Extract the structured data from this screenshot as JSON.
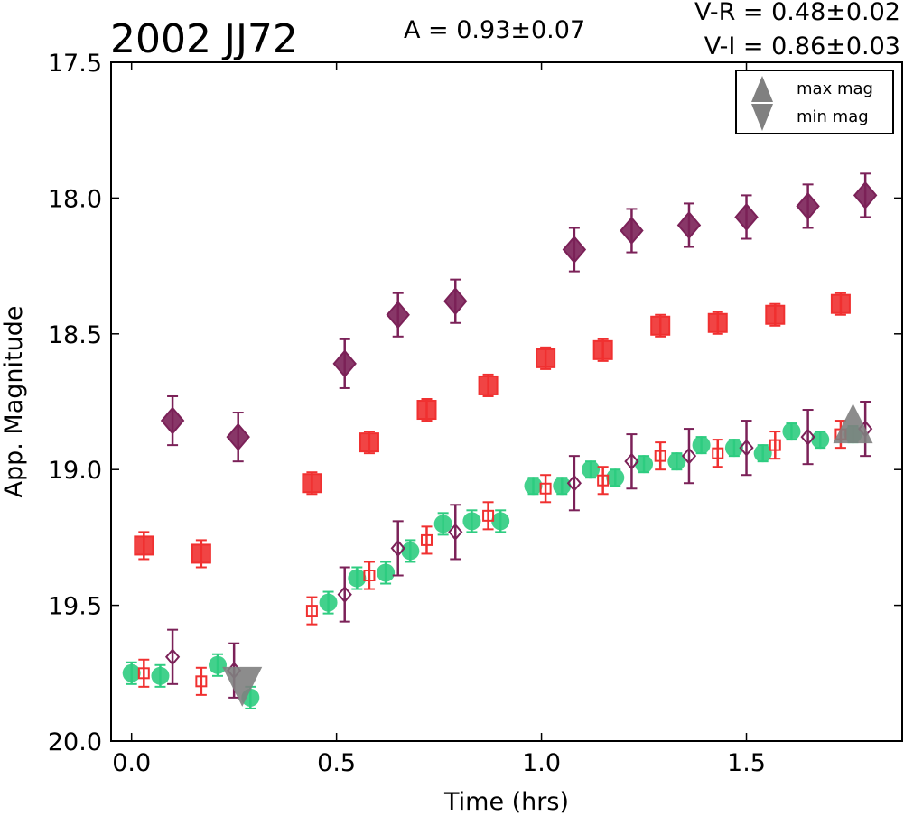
{
  "chart_data": {
    "type": "scatter",
    "title": "2002 JJ72",
    "annotations": {
      "amplitude": "A  = 0.93±0.07",
      "v_r": "V-R = 0.48±0.02",
      "v_i": "V-I  = 0.86±0.03"
    },
    "xlabel": "Time (hrs)",
    "ylabel": "App. Magnitude",
    "xlim": [
      -0.05,
      1.88
    ],
    "ylim": [
      20.0,
      17.5
    ],
    "y_inverted": true,
    "xticks": [
      "0.0",
      "0.5",
      "1.0",
      "1.5"
    ],
    "xtick_values": [
      0.0,
      0.5,
      1.0,
      1.5
    ],
    "yticks": [
      "17.5",
      "18.0",
      "18.5",
      "19.0",
      "19.5",
      "20.0"
    ],
    "ytick_values": [
      17.5,
      18.0,
      18.5,
      19.0,
      19.5,
      20.0
    ],
    "grid": false,
    "legend_position": "top-right",
    "legend": [
      {
        "label": "max mag",
        "marker": "triangle-up",
        "color": "#808080"
      },
      {
        "label": "min mag",
        "marker": "triangle-down",
        "color": "#808080"
      }
    ],
    "markers": {
      "max": {
        "x": 1.76,
        "y": 18.85,
        "color": "#808080"
      },
      "min": {
        "x": 0.27,
        "y": 19.78,
        "color": "#808080"
      }
    },
    "series": [
      {
        "marker": "diamond",
        "color": "#7b2158",
        "filled": true,
        "points": [
          {
            "x": 0.1,
            "y": 18.82,
            "err": 0.09
          },
          {
            "x": 0.26,
            "y": 18.88,
            "err": 0.09
          },
          {
            "x": 0.52,
            "y": 18.61,
            "err": 0.09
          },
          {
            "x": 0.65,
            "y": 18.43,
            "err": 0.08
          },
          {
            "x": 0.79,
            "y": 18.38,
            "err": 0.08
          },
          {
            "x": 1.08,
            "y": 18.19,
            "err": 0.08
          },
          {
            "x": 1.22,
            "y": 18.12,
            "err": 0.08
          },
          {
            "x": 1.36,
            "y": 18.1,
            "err": 0.08
          },
          {
            "x": 1.5,
            "y": 18.07,
            "err": 0.08
          },
          {
            "x": 1.65,
            "y": 18.03,
            "err": 0.08
          },
          {
            "x": 1.79,
            "y": 17.99,
            "err": 0.08
          }
        ]
      },
      {
        "marker": "square",
        "color": "#f03030",
        "filled": true,
        "points": [
          {
            "x": 0.03,
            "y": 19.28,
            "err": 0.05
          },
          {
            "x": 0.17,
            "y": 19.31,
            "err": 0.05
          },
          {
            "x": 0.44,
            "y": 19.05,
            "err": 0.04
          },
          {
            "x": 0.58,
            "y": 18.9,
            "err": 0.04
          },
          {
            "x": 0.72,
            "y": 18.78,
            "err": 0.04
          },
          {
            "x": 0.87,
            "y": 18.69,
            "err": 0.04
          },
          {
            "x": 1.01,
            "y": 18.59,
            "err": 0.04
          },
          {
            "x": 1.15,
            "y": 18.56,
            "err": 0.04
          },
          {
            "x": 1.29,
            "y": 18.47,
            "err": 0.04
          },
          {
            "x": 1.43,
            "y": 18.46,
            "err": 0.04
          },
          {
            "x": 1.57,
            "y": 18.43,
            "err": 0.04
          },
          {
            "x": 1.73,
            "y": 18.39,
            "err": 0.04
          }
        ]
      },
      {
        "marker": "circle",
        "color": "#2ecc80",
        "filled": true,
        "points": [
          {
            "x": 0.0,
            "y": 19.75,
            "err": 0.04
          },
          {
            "x": 0.07,
            "y": 19.76,
            "err": 0.04
          },
          {
            "x": 0.21,
            "y": 19.72,
            "err": 0.04
          },
          {
            "x": 0.29,
            "y": 19.84,
            "err": 0.04
          },
          {
            "x": 0.48,
            "y": 19.49,
            "err": 0.04
          },
          {
            "x": 0.55,
            "y": 19.4,
            "err": 0.04
          },
          {
            "x": 0.62,
            "y": 19.38,
            "err": 0.04
          },
          {
            "x": 0.68,
            "y": 19.3,
            "err": 0.04
          },
          {
            "x": 0.76,
            "y": 19.2,
            "err": 0.04
          },
          {
            "x": 0.83,
            "y": 19.19,
            "err": 0.04
          },
          {
            "x": 0.9,
            "y": 19.19,
            "err": 0.04
          },
          {
            "x": 0.98,
            "y": 19.06,
            "err": 0.03
          },
          {
            "x": 1.05,
            "y": 19.06,
            "err": 0.03
          },
          {
            "x": 1.12,
            "y": 19.0,
            "err": 0.03
          },
          {
            "x": 1.18,
            "y": 19.03,
            "err": 0.03
          },
          {
            "x": 1.25,
            "y": 18.98,
            "err": 0.03
          },
          {
            "x": 1.33,
            "y": 18.97,
            "err": 0.03
          },
          {
            "x": 1.39,
            "y": 18.91,
            "err": 0.03
          },
          {
            "x": 1.47,
            "y": 18.92,
            "err": 0.03
          },
          {
            "x": 1.54,
            "y": 18.94,
            "err": 0.03
          },
          {
            "x": 1.61,
            "y": 18.86,
            "err": 0.03
          },
          {
            "x": 1.68,
            "y": 18.89,
            "err": 0.03
          },
          {
            "x": 1.76,
            "y": 18.87,
            "err": 0.03
          }
        ]
      },
      {
        "marker": "square",
        "color": "#f03030",
        "filled": false,
        "points": [
          {
            "x": 0.03,
            "y": 19.75,
            "err": 0.05
          },
          {
            "x": 0.17,
            "y": 19.78,
            "err": 0.05
          },
          {
            "x": 0.44,
            "y": 19.52,
            "err": 0.05
          },
          {
            "x": 0.58,
            "y": 19.39,
            "err": 0.05
          },
          {
            "x": 0.72,
            "y": 19.26,
            "err": 0.05
          },
          {
            "x": 0.87,
            "y": 19.17,
            "err": 0.05
          },
          {
            "x": 1.01,
            "y": 19.07,
            "err": 0.05
          },
          {
            "x": 1.15,
            "y": 19.04,
            "err": 0.05
          },
          {
            "x": 1.29,
            "y": 18.95,
            "err": 0.05
          },
          {
            "x": 1.43,
            "y": 18.94,
            "err": 0.05
          },
          {
            "x": 1.57,
            "y": 18.91,
            "err": 0.05
          },
          {
            "x": 1.73,
            "y": 18.87,
            "err": 0.05
          }
        ]
      },
      {
        "marker": "diamond",
        "color": "#7b2158",
        "filled": false,
        "points": [
          {
            "x": 0.1,
            "y": 19.69,
            "err": 0.1
          },
          {
            "x": 0.25,
            "y": 19.74,
            "err": 0.1
          },
          {
            "x": 0.52,
            "y": 19.46,
            "err": 0.1
          },
          {
            "x": 0.65,
            "y": 19.29,
            "err": 0.1
          },
          {
            "x": 0.79,
            "y": 19.23,
            "err": 0.1
          },
          {
            "x": 1.08,
            "y": 19.05,
            "err": 0.1
          },
          {
            "x": 1.22,
            "y": 18.97,
            "err": 0.1
          },
          {
            "x": 1.36,
            "y": 18.95,
            "err": 0.1
          },
          {
            "x": 1.5,
            "y": 18.92,
            "err": 0.1
          },
          {
            "x": 1.65,
            "y": 18.88,
            "err": 0.1
          },
          {
            "x": 1.79,
            "y": 18.85,
            "err": 0.1
          }
        ]
      }
    ]
  }
}
